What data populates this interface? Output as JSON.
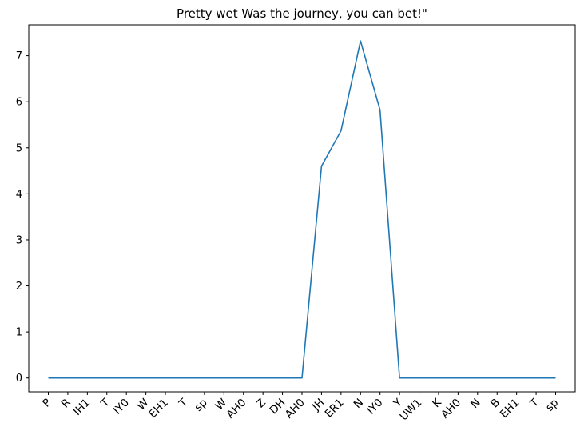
{
  "chart_data": {
    "type": "line",
    "title": "Pretty wet Was the journey, you can bet!\"",
    "xlabel": "",
    "ylabel": "",
    "categories": [
      "P",
      "R",
      "IH1",
      "T",
      "IY0",
      "W",
      "EH1",
      "T",
      "sp",
      "W",
      "AH0",
      "Z",
      "DH",
      "AH0",
      "JH",
      "ER1",
      "N",
      "IY0",
      "Y",
      "UW1",
      "K",
      "AH0",
      "N",
      "B",
      "EH1",
      "T",
      "sp"
    ],
    "series": [
      {
        "values": [
          0,
          0,
          0,
          0,
          0,
          0,
          0,
          0,
          0,
          0,
          0,
          0,
          0,
          0,
          4.6,
          5.37,
          7.32,
          5.82,
          0,
          0,
          0,
          0,
          0,
          0,
          0,
          0,
          0
        ],
        "color": "#1f77b4"
      }
    ],
    "ylim": [
      -0.3,
      7.67
    ],
    "yticks": [
      0,
      1,
      2,
      3,
      4,
      5,
      6,
      7
    ],
    "grid": false,
    "legend": "none"
  }
}
